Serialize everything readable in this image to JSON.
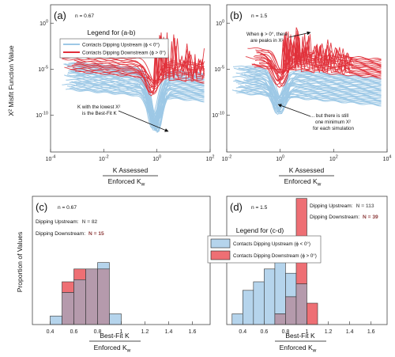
{
  "colors": {
    "upstream_line": "#9dc8e6",
    "downstream_line": "#e0303a",
    "upstream_bar": "#b5d4ec",
    "downstream_bar": "#ee6f74",
    "overlap_bar": "#b59aac",
    "count_gray": "#6f6f6f",
    "count_red": "#8c3a3a"
  },
  "figure": {
    "y_label_top": "X² Misfit Function Value",
    "x_label_top_numerator": "K Assessed",
    "x_label_top_denominator": "Enforced K",
    "y_label_bottom": "Proportion of Values",
    "x_label_bottom_numerator": "Best-Fit K",
    "x_label_bottom_denominator": "Enforced K",
    "denominator_subscript": "w",
    "legend_ab_title": "Legend for (a-b)",
    "legend_cd_title": "Legend for (c-d)",
    "legend_upstream": "Contacts Dipping Upstream (ϕ < 0°)",
    "legend_downstream": "Contacts Dipping Downstream (ϕ > 0°)"
  },
  "panels": {
    "a": {
      "label": "(a)",
      "n": "n = 0.67",
      "annotation_lines": [
        "K with the lowest X²",
        "is the Best-Fit K"
      ]
    },
    "b": {
      "label": "(b)",
      "n": "n = 1.5",
      "annotation1_lines": [
        "When ϕ > 0°, there",
        "are peaks in X²"
      ],
      "annotation2_lines": [
        "... but there is still",
        "one minimum X²",
        "for each simulation"
      ]
    },
    "c": {
      "label": "(c)",
      "n": "n = 0.67",
      "upstream_text": "Dipping Upstream:",
      "upstream_count": "N = 82",
      "downstream_text": "Dipping Downstream:",
      "downstream_count": "N = 15"
    },
    "d": {
      "label": "(d)",
      "n": "n = 1.5",
      "upstream_text": "Dipping Upstream:",
      "upstream_count": "N = 113",
      "downstream_text": "Dipping Downstream:",
      "downstream_count": "N = 39"
    }
  },
  "chart_data": [
    {
      "panel": "a",
      "type": "line",
      "x_scale": "log",
      "y_scale": "log",
      "xlim": [
        0.0001,
        100
      ],
      "ylim": [
        1e-14,
        100
      ],
      "x_ticks": [
        {
          "v": 0.0001,
          "e": "-4"
        },
        {
          "v": 0.01,
          "e": "-2"
        },
        {
          "v": 1,
          "e": "0"
        },
        {
          "v": 100,
          "e": "2"
        }
      ],
      "y_ticks": [
        {
          "v": 1e-10,
          "e": "-10"
        },
        {
          "v": 1e-05,
          "e": "-5"
        },
        {
          "v": 1,
          "e": "0"
        }
      ],
      "series": [
        {
          "name": "Contacts Dipping Upstream (ϕ < 0°)",
          "curves": 82,
          "x_range": [
            0.00025,
            60
          ],
          "minimum_x": 0.85,
          "minimum_y": 1e-12,
          "plateau_y": [
            1e-08,
            1e-05
          ]
        },
        {
          "name": "Contacts Dipping Downstream (ϕ > 0°)",
          "curves": 15,
          "x_range": [
            0.00025,
            60
          ],
          "minimum_x": 0.7,
          "minimum_y": 1e-08,
          "plateau_y": [
            1e-06,
            0.0001
          ],
          "peak_y": 10
        }
      ]
    },
    {
      "panel": "b",
      "type": "line",
      "x_scale": "log",
      "y_scale": "log",
      "xlim": [
        0.01,
        10000
      ],
      "ylim": [
        1e-14,
        100
      ],
      "x_ticks": [
        {
          "v": 0.01,
          "e": "-2"
        },
        {
          "v": 1,
          "e": "0"
        },
        {
          "v": 100,
          "e": "2"
        },
        {
          "v": 10000,
          "e": "4"
        }
      ],
      "y_ticks": [
        {
          "v": 1e-10,
          "e": "-10"
        },
        {
          "v": 1e-05,
          "e": "-5"
        },
        {
          "v": 1,
          "e": "0"
        }
      ],
      "series": [
        {
          "name": "Contacts Dipping Upstream (ϕ < 0°)",
          "curves": 113,
          "x_range": [
            0.015,
            6000
          ],
          "minimum_x": 0.95,
          "minimum_y": 1e-10,
          "plateau_y": [
            1e-08,
            1e-05
          ]
        },
        {
          "name": "Contacts Dipping Downstream (ϕ > 0°)",
          "curves": 39,
          "x_range": [
            0.05,
            6000
          ],
          "minimum_x": 1.0,
          "minimum_y": 1e-07,
          "plateau_y": [
            1e-05,
            0.001
          ],
          "peak_y": 10
        }
      ]
    },
    {
      "panel": "c",
      "type": "bar",
      "bin_width": 0.1,
      "xlim": [
        0.25,
        1.75
      ],
      "ylim": [
        0,
        0.6
      ],
      "x_ticks": [
        0.4,
        0.6,
        0.8,
        1,
        1.2,
        1.4,
        1.6
      ],
      "bin_centers": [
        0.45,
        0.55,
        0.65,
        0.75,
        0.85,
        0.95
      ],
      "series": [
        {
          "name": "Contacts Dipping Upstream (ϕ < 0°)",
          "values": [
            0.04,
            0.15,
            0.21,
            0.26,
            0.29,
            0.05
          ]
        },
        {
          "name": "Contacts Dipping Downstream (ϕ > 0°)",
          "values": [
            0.0,
            0.2,
            0.26,
            0.26,
            0.26,
            0.0
          ]
        }
      ]
    },
    {
      "panel": "d",
      "type": "bar",
      "bin_width": 0.1,
      "xlim": [
        0.25,
        1.75
      ],
      "ylim": [
        0,
        0.6
      ],
      "x_ticks": [
        0.4,
        0.6,
        0.8,
        1,
        1.2,
        1.4,
        1.6
      ],
      "bin_centers": [
        0.35,
        0.45,
        0.55,
        0.65,
        0.75,
        0.85,
        0.95,
        1.05
      ],
      "series": [
        {
          "name": "Contacts Dipping Upstream (ϕ < 0°)",
          "values": [
            0.05,
            0.16,
            0.2,
            0.26,
            0.29,
            0.24,
            0.19,
            0.0
          ]
        },
        {
          "name": "Contacts Dipping Downstream (ϕ > 0°)",
          "values": [
            0.0,
            0.0,
            0.0,
            0.0,
            0.05,
            0.13,
            0.59,
            0.1
          ]
        }
      ]
    }
  ]
}
